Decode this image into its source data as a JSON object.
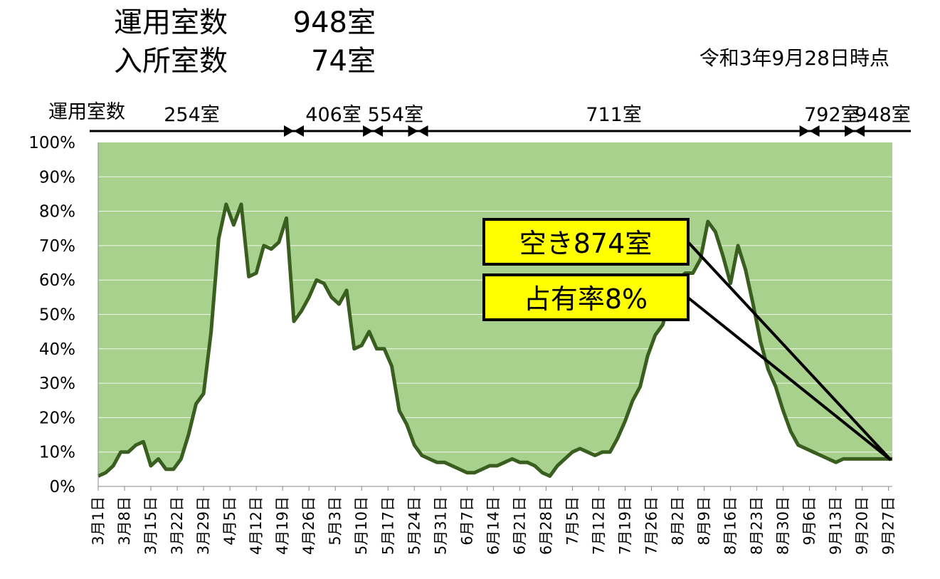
{
  "header": {
    "operating_rooms_label": "運用室数",
    "operating_rooms_value": "948室",
    "occupied_rooms_label": "入所室数",
    "occupied_rooms_value": "74室",
    "as_of": "令和3年9月28日時点"
  },
  "periods": {
    "label": "運用室数",
    "items": [
      {
        "label": "254室",
        "start": "3月1日",
        "end": "4月22日"
      },
      {
        "label": "406室",
        "start": "4月22日",
        "end": "5月13日"
      },
      {
        "label": "554室",
        "start": "5月13日",
        "end": "5月25日"
      },
      {
        "label": "711室",
        "start": "5月25日",
        "end": "9月6日"
      },
      {
        "label": "792室",
        "start": "9月6日",
        "end": "9月18日"
      },
      {
        "label": "948室",
        "start": "9月18日",
        "end": "9月28日"
      }
    ]
  },
  "callouts": {
    "vacant": "空き874室",
    "occupancy": "占有率8%"
  },
  "colors": {
    "fill": "#a9d18e",
    "line": "#3a5e1f",
    "callout_bg": "#ffff00"
  },
  "chart_data": {
    "type": "area",
    "title": "",
    "xlabel": "",
    "ylabel": "",
    "ylim": [
      0,
      100
    ],
    "yticks": [
      "0%",
      "10%",
      "20%",
      "30%",
      "40%",
      "50%",
      "60%",
      "70%",
      "80%",
      "90%",
      "100%"
    ],
    "xticks": [
      "3月1日",
      "3月8日",
      "3月15日",
      "3月22日",
      "3月29日",
      "4月5日",
      "4月12日",
      "4月19日",
      "4月26日",
      "5月3日",
      "5月10日",
      "5月17日",
      "5月24日",
      "5月31日",
      "6月7日",
      "6月14日",
      "6月21日",
      "6月28日",
      "7月5日",
      "7月12日",
      "7月19日",
      "7月26日",
      "8月2日",
      "8月9日",
      "8月16日",
      "8月23日",
      "8月30日",
      "9月6日",
      "9月13日",
      "9月20日",
      "9月27日"
    ],
    "grid": true,
    "series": [
      {
        "x": [
          "3月1日",
          "3月3日",
          "3月5日",
          "3月7日",
          "3月9日",
          "3月11日",
          "3月13日",
          "3月15日",
          "3月17日",
          "3月19日",
          "3月21日",
          "3月23日",
          "3月25日",
          "3月27日",
          "3月29日",
          "3月31日",
          "4月2日",
          "4月4日",
          "4月6日",
          "4月8日",
          "4月10日",
          "4月12日",
          "4月14日",
          "4月16日",
          "4月18日",
          "4月20日",
          "4月22日",
          "4月24日",
          "4月26日",
          "4月28日",
          "4月30日",
          "5月2日",
          "5月4日",
          "5月6日",
          "5月8日",
          "5月10日",
          "5月12日",
          "5月14日",
          "5月16日",
          "5月18日",
          "5月20日",
          "5月22日",
          "5月24日",
          "5月26日",
          "5月28日",
          "5月30日",
          "6月1日",
          "6月3日",
          "6月5日",
          "6月7日",
          "6月9日",
          "6月11日",
          "6月13日",
          "6月15日",
          "6月17日",
          "6月19日",
          "6月21日",
          "6月23日",
          "6月25日",
          "6月27日",
          "6月29日",
          "7月1日",
          "7月3日",
          "7月5日",
          "7月7日",
          "7月9日",
          "7月11日",
          "7月13日",
          "7月15日",
          "7月17日",
          "7月19日",
          "7月21日",
          "7月23日",
          "7月25日",
          "7月27日",
          "7月29日",
          "7月31日",
          "8月2日",
          "8月4日",
          "8月6日",
          "8月8日",
          "8月10日",
          "8月12日",
          "8月14日",
          "8月16日",
          "8月18日",
          "8月20日",
          "8月22日",
          "8月24日",
          "8月26日",
          "8月28日",
          "8月30日",
          "9月1日",
          "9月3日",
          "9月5日",
          "9月7日",
          "9月9日",
          "9月11日",
          "9月13日",
          "9月15日",
          "9月17日",
          "9月19日",
          "9月21日",
          "9月23日",
          "9月25日",
          "9月27日",
          "9月28日"
        ],
        "values": [
          3,
          4,
          6,
          10,
          10,
          12,
          13,
          6,
          8,
          5,
          5,
          8,
          15,
          24,
          27,
          45,
          72,
          82,
          76,
          82,
          61,
          62,
          70,
          69,
          71,
          78,
          48,
          51,
          55,
          60,
          59,
          55,
          53,
          57,
          40,
          41,
          45,
          40,
          40,
          35,
          22,
          18,
          12,
          9,
          8,
          7,
          7,
          6,
          5,
          4,
          4,
          5,
          6,
          6,
          7,
          8,
          7,
          7,
          6,
          4,
          3,
          6,
          8,
          10,
          11,
          10,
          9,
          10,
          10,
          14,
          19,
          25,
          29,
          38,
          44,
          47,
          55,
          60,
          62,
          62,
          66,
          77,
          74,
          67,
          59,
          70,
          63,
          53,
          42,
          34,
          29,
          22,
          16,
          12,
          11,
          10,
          9,
          8,
          7,
          8,
          8,
          8,
          8,
          8,
          8,
          8,
          8
        ]
      }
    ]
  }
}
